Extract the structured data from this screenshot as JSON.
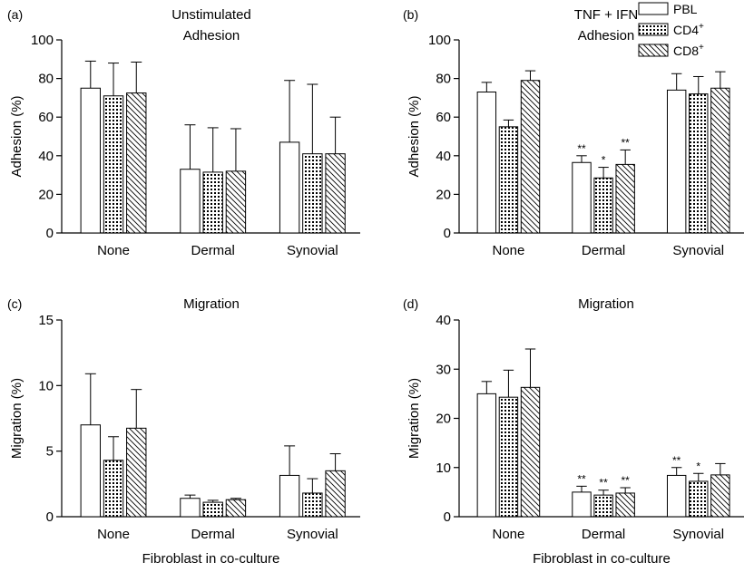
{
  "legend": [
    {
      "name": "PBL",
      "pattern": "plain"
    },
    {
      "name": "CD4",
      "sup": "+",
      "pattern": "dots"
    },
    {
      "name": "CD8",
      "sup": "+",
      "pattern": "hatch"
    }
  ],
  "chart_data": [
    {
      "panel_label": "(a)",
      "type": "bar",
      "title_lines": [
        "Unstimulated",
        "Adhesion"
      ],
      "ylabel": "Adhesion (%)",
      "xlabel": "",
      "ylim": [
        0,
        100
      ],
      "yticks": [
        0,
        20,
        40,
        60,
        80,
        100
      ],
      "categories": [
        "None",
        "Dermal",
        "Synovial"
      ],
      "series": [
        {
          "name": "PBL",
          "values": [
            75,
            33,
            47
          ],
          "errors": [
            14,
            23,
            32
          ],
          "marks": [
            "",
            "",
            ""
          ]
        },
        {
          "name": "CD4+",
          "values": [
            71,
            31.5,
            41
          ],
          "errors": [
            17,
            23,
            36
          ],
          "marks": [
            "",
            "",
            ""
          ]
        },
        {
          "name": "CD8+",
          "values": [
            72.5,
            32,
            41
          ],
          "errors": [
            16,
            22,
            19
          ],
          "marks": [
            "",
            "",
            ""
          ]
        }
      ]
    },
    {
      "panel_label": "(b)",
      "type": "bar",
      "title_lines": [
        "TNF + IFN",
        "Adhesion"
      ],
      "ylabel": "Adhesion (%)",
      "xlabel": "",
      "ylim": [
        0,
        100
      ],
      "yticks": [
        0,
        20,
        40,
        60,
        80,
        100
      ],
      "categories": [
        "None",
        "Dermal",
        "Synovial"
      ],
      "series": [
        {
          "name": "PBL",
          "values": [
            73,
            36.5,
            74
          ],
          "errors": [
            5,
            3.5,
            8.5
          ],
          "marks": [
            "",
            "**",
            ""
          ]
        },
        {
          "name": "CD4+",
          "values": [
            55,
            28.5,
            72
          ],
          "errors": [
            3.5,
            5.5,
            9
          ],
          "marks": [
            "",
            "*",
            ""
          ]
        },
        {
          "name": "CD8+",
          "values": [
            79,
            35.5,
            75
          ],
          "errors": [
            5,
            7.5,
            8.5
          ],
          "marks": [
            "",
            "**",
            ""
          ]
        }
      ]
    },
    {
      "panel_label": "(c)",
      "type": "bar",
      "title_lines": [
        "Migration"
      ],
      "ylabel": "Migration (%)",
      "xlabel": "Fibroblast in co-culture",
      "ylim": [
        0,
        15
      ],
      "yticks": [
        0,
        5,
        10,
        15
      ],
      "categories": [
        "None",
        "Dermal",
        "Synovial"
      ],
      "series": [
        {
          "name": "PBL",
          "values": [
            7.0,
            1.4,
            3.15
          ],
          "errors": [
            3.9,
            0.25,
            2.25
          ],
          "marks": [
            "",
            "",
            ""
          ]
        },
        {
          "name": "CD4+",
          "values": [
            4.3,
            1.1,
            1.8
          ],
          "errors": [
            1.8,
            0.15,
            1.1
          ],
          "marks": [
            "",
            "",
            ""
          ]
        },
        {
          "name": "CD8+",
          "values": [
            6.75,
            1.3,
            3.5
          ],
          "errors": [
            2.95,
            0.1,
            1.3
          ],
          "marks": [
            "",
            "",
            ""
          ]
        }
      ]
    },
    {
      "panel_label": "(d)",
      "type": "bar",
      "title_lines": [
        "Migration"
      ],
      "ylabel": "Migration (%)",
      "xlabel": "Fibroblast in co-culture",
      "ylim": [
        0,
        40
      ],
      "yticks": [
        0,
        10,
        20,
        30,
        40
      ],
      "categories": [
        "None",
        "Dermal",
        "Synovial"
      ],
      "series": [
        {
          "name": "PBL",
          "values": [
            25,
            5,
            8.4
          ],
          "errors": [
            2.5,
            1.2,
            1.6
          ],
          "marks": [
            "",
            "**",
            "**"
          ]
        },
        {
          "name": "CD4+",
          "values": [
            24.3,
            4.4,
            7.2
          ],
          "errors": [
            5.5,
            1.0,
            1.6
          ],
          "marks": [
            "",
            "**",
            "*"
          ]
        },
        {
          "name": "CD8+",
          "values": [
            26.3,
            4.8,
            8.5
          ],
          "errors": [
            7.8,
            1.1,
            2.3
          ],
          "marks": [
            "",
            "**",
            ""
          ]
        }
      ]
    }
  ]
}
